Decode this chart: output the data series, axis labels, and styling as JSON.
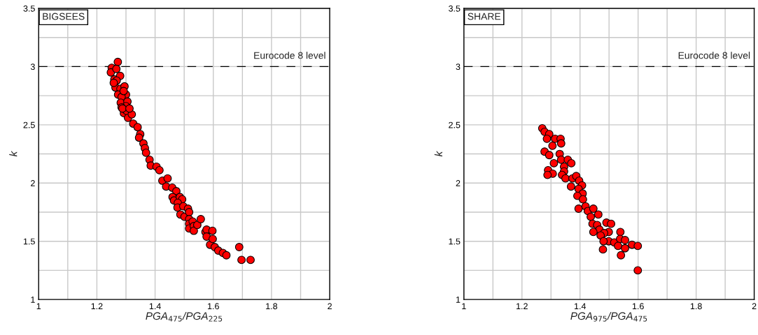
{
  "chart_data": [
    {
      "type": "scatter",
      "xlabel": "PGA$_{475}$/PGA$_{225}$",
      "ylabel": "k",
      "annotations": [
        "BIGSEES"
      ],
      "marker": "circle",
      "grid": true,
      "xlim": [
        1,
        2
      ],
      "ylim": [
        1,
        3.5
      ],
      "xticks": [
        1,
        {
          "value": 1.1,
          "label": null
        },
        1.2,
        {
          "value": 1.3,
          "label": null
        },
        1.4,
        {
          "value": 1.5,
          "label": null
        },
        1.6,
        {
          "value": 1.7,
          "label": null
        },
        1.8,
        {
          "value": 1.9,
          "label": null
        },
        2
      ],
      "yticks": [
        1,
        {
          "value": 1.25,
          "label": null
        },
        1.5,
        {
          "value": 1.75,
          "label": null
        },
        2,
        {
          "value": 2.25,
          "label": null
        },
        2.5,
        {
          "value": 2.75,
          "label": null
        },
        3,
        {
          "value": 3.25,
          "label": null
        },
        3.5
      ],
      "ref_lines": [
        {
          "axis": "y",
          "value": 3,
          "label": "Eurocode 8 level",
          "color": "#000000",
          "line_style": "dashed"
        }
      ],
      "series": [
        {
          "color": "#ff0000",
          "x": [
            1.272,
            1.251,
            1.248,
            1.267,
            1.26,
            1.28,
            1.268,
            1.264,
            1.281,
            1.295,
            1.273,
            1.3,
            1.285,
            1.282,
            1.305,
            1.3,
            1.285,
            1.293,
            1.302,
            1.307,
            1.32,
            1.325,
            1.34,
            1.349,
            1.345,
            1.36,
            1.365,
            1.369,
            1.381,
            1.385,
            1.405,
            1.415,
            1.425,
            1.443,
            1.438,
            1.459,
            1.473,
            1.46,
            1.465,
            1.485,
            1.493,
            1.478,
            1.477,
            1.497,
            1.487,
            1.501,
            1.513,
            1.517,
            1.517,
            1.517,
            1.517,
            1.529,
            1.533,
            1.533,
            1.545,
            1.557,
            1.573,
            1.577,
            1.577,
            1.589,
            1.597,
            1.598,
            1.605,
            1.617,
            1.633,
            1.645,
            1.689,
            1.697,
            1.728,
            1.258,
            1.292,
            1.288,
            1.312
          ],
          "values": [
            3.04,
            2.99,
            2.95,
            2.98,
            2.89,
            2.92,
            2.88,
            2.82,
            2.81,
            2.83,
            2.76,
            2.76,
            2.74,
            2.69,
            2.7,
            2.66,
            2.65,
            2.6,
            2.62,
            2.56,
            2.59,
            2.51,
            2.48,
            2.42,
            2.39,
            2.34,
            2.3,
            2.26,
            2.2,
            2.15,
            2.14,
            2.11,
            2.02,
            2.04,
            1.97,
            1.96,
            1.93,
            1.88,
            1.85,
            1.88,
            1.86,
            1.83,
            1.79,
            1.8,
            1.73,
            1.71,
            1.78,
            1.75,
            1.69,
            1.65,
            1.61,
            1.67,
            1.63,
            1.59,
            1.64,
            1.69,
            1.58,
            1.6,
            1.54,
            1.47,
            1.59,
            1.52,
            1.45,
            1.42,
            1.4,
            1.38,
            1.45,
            1.34,
            1.34,
            2.86,
            2.79,
            2.64,
            2.64
          ]
        }
      ]
    },
    {
      "type": "scatter",
      "xlabel": "PGA$_{975}$/PGA$_{475}$",
      "ylabel": "k",
      "annotations": [
        "SHARE"
      ],
      "marker": "circle",
      "grid": true,
      "xlim": [
        1,
        2
      ],
      "ylim": [
        1,
        3.5
      ],
      "xticks": [
        1,
        {
          "value": 1.1,
          "label": null
        },
        1.2,
        {
          "value": 1.3,
          "label": null
        },
        1.4,
        {
          "value": 1.5,
          "label": null
        },
        1.6,
        {
          "value": 1.7,
          "label": null
        },
        1.8,
        {
          "value": 1.9,
          "label": null
        },
        2
      ],
      "yticks": [
        1,
        {
          "value": 1.25,
          "label": null
        },
        1.5,
        {
          "value": 1.75,
          "label": null
        },
        2,
        {
          "value": 2.25,
          "label": null
        },
        2.5,
        {
          "value": 2.75,
          "label": null
        },
        3,
        {
          "value": 3.25,
          "label": null
        },
        3.5
      ],
      "ref_lines": [
        {
          "axis": "y",
          "value": 3,
          "label": "Eurocode 8 level",
          "color": "#000000",
          "line_style": "dashed"
        }
      ],
      "series": [
        {
          "color": "#ff0000",
          "x": [
            1.27,
            1.278,
            1.294,
            1.286,
            1.314,
            1.333,
            1.335,
            1.305,
            1.278,
            1.294,
            1.33,
            1.31,
            1.335,
            1.358,
            1.37,
            1.345,
            1.29,
            1.306,
            1.288,
            1.345,
            1.338,
            1.35,
            1.374,
            1.387,
            1.397,
            1.369,
            1.407,
            1.395,
            1.409,
            1.391,
            1.41,
            1.395,
            1.419,
            1.427,
            1.446,
            1.463,
            1.437,
            1.443,
            1.459,
            1.467,
            1.491,
            1.507,
            1.499,
            1.483,
            1.446,
            1.471,
            1.499,
            1.481,
            1.518,
            1.539,
            1.538,
            1.555,
            1.531,
            1.479,
            1.555,
            1.579,
            1.599,
            1.541,
            1.599
          ],
          "values": [
            2.47,
            2.44,
            2.42,
            2.38,
            2.38,
            2.38,
            2.34,
            2.32,
            2.27,
            2.24,
            2.25,
            2.17,
            2.2,
            2.2,
            2.17,
            2.14,
            2.11,
            2.08,
            2.07,
            2.1,
            2.07,
            2.04,
            2.04,
            2.06,
            2.02,
            1.97,
            1.98,
            1.95,
            1.91,
            1.89,
            1.86,
            1.78,
            1.8,
            1.76,
            1.78,
            1.73,
            1.71,
            1.65,
            1.64,
            1.6,
            1.66,
            1.65,
            1.58,
            1.57,
            1.58,
            1.55,
            1.5,
            1.5,
            1.49,
            1.58,
            1.52,
            1.51,
            1.46,
            1.43,
            1.44,
            1.47,
            1.46,
            1.38,
            1.25
          ]
        }
      ]
    }
  ]
}
